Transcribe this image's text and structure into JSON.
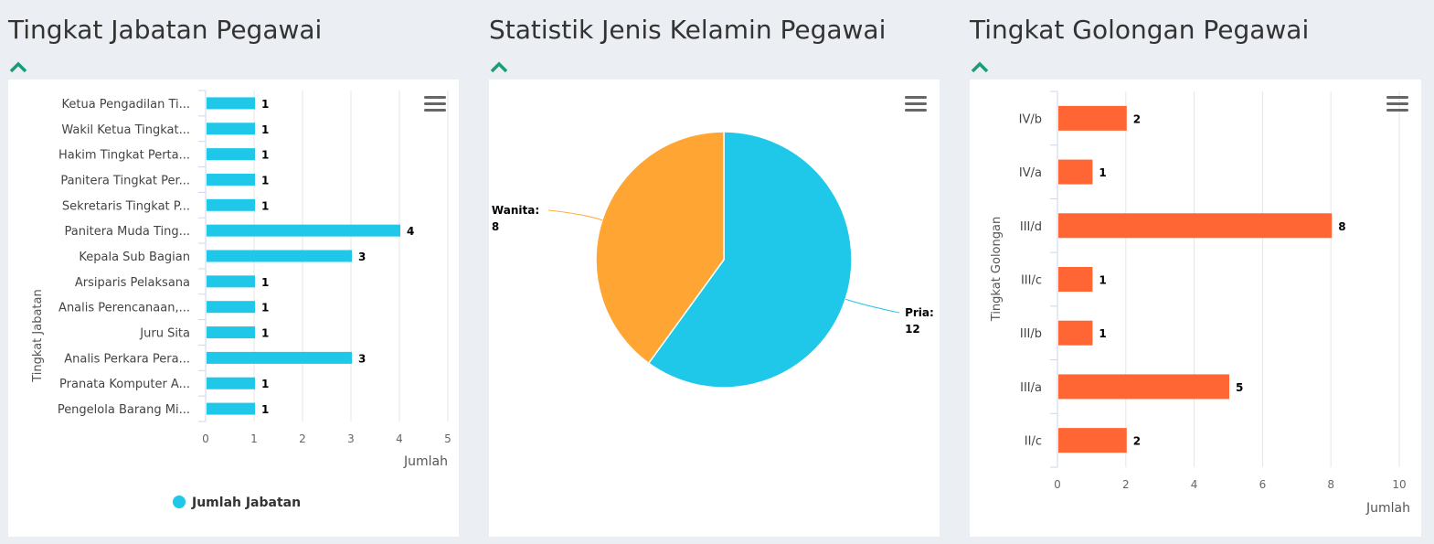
{
  "panels": [
    {
      "title": "Tingkat Jabatan Pegawai"
    },
    {
      "title": "Statistik Jenis Kelamin Pegawai"
    },
    {
      "title": "Tingkat Golongan Pegawai"
    }
  ],
  "icons": {
    "collapse": "chevron-up-icon",
    "menu": "hamburger-menu-icon"
  },
  "chart_data": [
    {
      "type": "bar",
      "orientation": "horizontal",
      "categories": [
        "Ketua Pengadilan Ti...",
        "Wakil Ketua Tingkat...",
        "Hakim Tingkat Perta...",
        "Panitera Tingkat Per...",
        "Sekretaris Tingkat P...",
        "Panitera Muda Ting...",
        "Kepala Sub Bagian",
        "Arsiparis Pelaksana",
        "Analis Perencanaan,...",
        "Juru Sita",
        "Analis Perkara Pera...",
        "Pranata Komputer A...",
        "Pengelola Barang Mi..."
      ],
      "series": [
        {
          "name": "Jumlah Jabatan",
          "values": [
            1,
            1,
            1,
            1,
            1,
            4,
            3,
            1,
            1,
            1,
            3,
            1,
            1
          ]
        }
      ],
      "xlabel": "Jumlah",
      "ylabel": "Tingkat Jabatan",
      "xlim": [
        0,
        5
      ],
      "ticks": [
        "0",
        "1",
        "2",
        "3",
        "4",
        "5"
      ],
      "color": "#1fc8e8",
      "grid": true,
      "legend": "bottom-center"
    },
    {
      "type": "pie",
      "slices": [
        {
          "label": "Pria",
          "value": 12,
          "color": "#1fc8e8"
        },
        {
          "label": "Wanita",
          "value": 8,
          "color": "#ffa533"
        }
      ]
    },
    {
      "type": "bar",
      "orientation": "horizontal",
      "categories": [
        "IV/b",
        "IV/a",
        "III/d",
        "III/c",
        "III/b",
        "III/a",
        "II/c"
      ],
      "values": [
        2,
        1,
        8,
        1,
        1,
        5,
        2
      ],
      "xlabel": "Jumlah",
      "ylabel": "Tingkat Golongan",
      "xlim": [
        0,
        10
      ],
      "ticks": [
        "0",
        "2",
        "4",
        "6",
        "8",
        "10"
      ],
      "color": "#ff6633",
      "grid": true
    }
  ]
}
